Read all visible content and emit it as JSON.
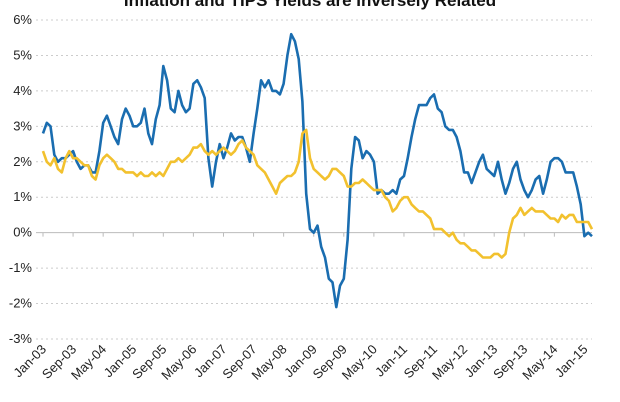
{
  "chart_data": {
    "type": "line",
    "title": "Inflation and TIPS Yields are Inversely Related",
    "xlabel": "",
    "ylabel": "",
    "x_start": "2003-01",
    "x_frequency": "monthly",
    "x_tick_labels": [
      "Jan-03",
      "Sep-03",
      "May-04",
      "Jan-05",
      "Sep-05",
      "May-06",
      "Jan-07",
      "Sep-07",
      "May-08",
      "Jan-09",
      "Sep-09",
      "May-10",
      "Jan-11",
      "Sep-11",
      "May-12",
      "Jan-13",
      "Sep-13",
      "May-14",
      "Jan-15"
    ],
    "y_tick_labels": [
      "6%",
      "5%",
      "4%",
      "3%",
      "2%",
      "1%",
      "0%",
      "-1%",
      "-2%",
      "-3%"
    ],
    "ylim": [
      -3,
      6
    ],
    "grid": "horizontal dotted",
    "series": [
      {
        "color": "#1a6db0",
        "values": [
          2.8,
          3.1,
          3.0,
          2.2,
          2.0,
          2.1,
          2.1,
          2.2,
          2.3,
          2.0,
          1.8,
          1.9,
          1.9,
          1.7,
          1.7,
          2.3,
          3.1,
          3.3,
          3.0,
          2.7,
          2.5,
          3.2,
          3.5,
          3.3,
          3.0,
          3.0,
          3.1,
          3.5,
          2.8,
          2.5,
          3.2,
          3.6,
          4.7,
          4.3,
          3.5,
          3.4,
          4.0,
          3.6,
          3.4,
          3.5,
          4.2,
          4.3,
          4.1,
          3.8,
          2.1,
          1.3,
          2.0,
          2.5,
          2.1,
          2.4,
          2.8,
          2.6,
          2.7,
          2.7,
          2.4,
          2.0,
          2.8,
          3.5,
          4.3,
          4.1,
          4.3,
          4.0,
          4.0,
          3.9,
          4.2,
          5.0,
          5.6,
          5.4,
          4.9,
          3.7,
          1.1,
          0.1,
          0.0,
          0.2,
          -0.4,
          -0.7,
          -1.3,
          -1.4,
          -2.1,
          -1.5,
          -1.3,
          -0.2,
          1.8,
          2.7,
          2.6,
          2.1,
          2.3,
          2.2,
          2.0,
          1.1,
          1.2,
          1.1,
          1.1,
          1.2,
          1.1,
          1.5,
          1.6,
          2.1,
          2.7,
          3.2,
          3.6,
          3.6,
          3.6,
          3.8,
          3.9,
          3.5,
          3.4,
          3.0,
          2.9,
          2.9,
          2.7,
          2.3,
          1.7,
          1.7,
          1.4,
          1.7,
          2.0,
          2.2,
          1.8,
          1.7,
          1.6,
          2.0,
          1.5,
          1.1,
          1.4,
          1.8,
          2.0,
          1.5,
          1.2,
          1.0,
          1.2,
          1.5,
          1.6,
          1.1,
          1.5,
          2.0,
          2.1,
          2.1,
          2.0,
          1.7,
          1.7,
          1.7,
          1.3,
          0.8,
          -0.1,
          0.0,
          -0.1
        ]
      },
      {
        "color": "#f2c12e",
        "values": [
          2.3,
          2.0,
          1.9,
          2.1,
          1.8,
          1.7,
          2.1,
          2.3,
          2.1,
          2.1,
          2.0,
          1.9,
          1.9,
          1.6,
          1.5,
          1.9,
          2.1,
          2.2,
          2.1,
          2.0,
          1.8,
          1.8,
          1.7,
          1.7,
          1.7,
          1.6,
          1.7,
          1.6,
          1.6,
          1.7,
          1.6,
          1.7,
          1.6,
          1.8,
          2.0,
          2.0,
          2.1,
          2.0,
          2.1,
          2.2,
          2.4,
          2.4,
          2.5,
          2.3,
          2.2,
          2.3,
          2.2,
          2.3,
          2.4,
          2.3,
          2.2,
          2.3,
          2.5,
          2.6,
          2.4,
          2.3,
          2.2,
          1.9,
          1.8,
          1.7,
          1.5,
          1.3,
          1.1,
          1.4,
          1.5,
          1.6,
          1.6,
          1.7,
          2.0,
          2.8,
          2.9,
          2.1,
          1.8,
          1.7,
          1.6,
          1.5,
          1.6,
          1.8,
          1.8,
          1.7,
          1.6,
          1.3,
          1.3,
          1.4,
          1.4,
          1.5,
          1.4,
          1.3,
          1.2,
          1.2,
          1.2,
          1.0,
          0.9,
          0.6,
          0.7,
          0.9,
          1.0,
          1.0,
          0.8,
          0.7,
          0.6,
          0.6,
          0.5,
          0.4,
          0.1,
          0.1,
          0.1,
          0.0,
          -0.1,
          0.0,
          -0.2,
          -0.3,
          -0.3,
          -0.4,
          -0.5,
          -0.5,
          -0.6,
          -0.7,
          -0.7,
          -0.7,
          -0.6,
          -0.6,
          -0.7,
          -0.6,
          0.0,
          0.4,
          0.5,
          0.7,
          0.5,
          0.6,
          0.7,
          0.6,
          0.6,
          0.6,
          0.5,
          0.4,
          0.4,
          0.3,
          0.5,
          0.4,
          0.5,
          0.5,
          0.3,
          0.3,
          0.3,
          0.3,
          0.1
        ]
      }
    ]
  }
}
